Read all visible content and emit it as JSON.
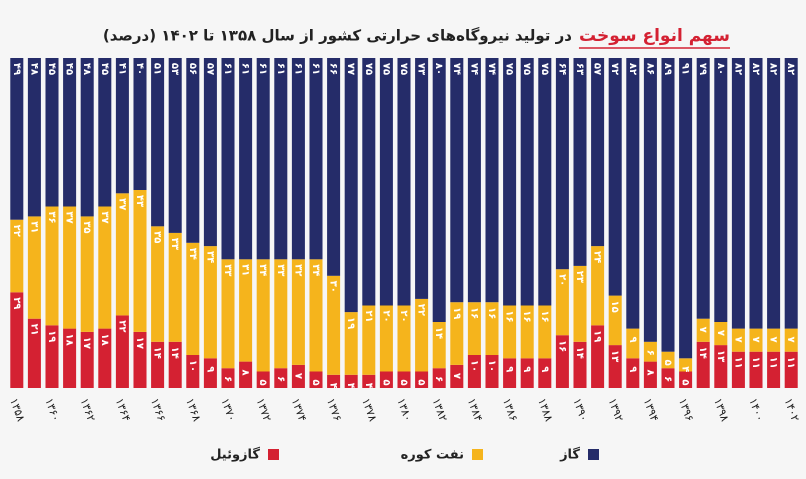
{
  "chart_data": {
    "type": "stacked_bar",
    "title_highlight": "سهم انواع سوخت",
    "title": "در تولید نیروگاه‌های حرارتی کشور از سال ۱۳۵۸ تا ۱۴۰۲ (درصد)",
    "categories": [
      "۱۳۵۸",
      null,
      "۱۳۶۰",
      null,
      "۱۳۶۲",
      null,
      "۱۳۶۴",
      null,
      "۱۳۶۶",
      null,
      "۱۳۶۸",
      null,
      "۱۳۷۰",
      null,
      "۱۳۷۲",
      null,
      "۱۳۷۴",
      null,
      "۱۳۷۶",
      null,
      "۱۳۷۸",
      null,
      "۱۳۸۰",
      null,
      "۱۳۸۲",
      null,
      "۱۳۸۴",
      null,
      "۱۳۸۶",
      null,
      "۱۳۸۸",
      null,
      "۱۳۹۰",
      null,
      "۱۳۹۲",
      null,
      "۱۳۹۴",
      null,
      "۱۳۹۶",
      null,
      "۱۳۹۸",
      null,
      "۱۴۰۰",
      null,
      "۱۴۰۲"
    ],
    "ylim": [
      0,
      100
    ],
    "series": [
      {
        "name": "گازوئیل",
        "color": "#d42132",
        "values": [
          29,
          21,
          19,
          18,
          17,
          18,
          22,
          17,
          14,
          14,
          10,
          9,
          6,
          8,
          5,
          6,
          7,
          5,
          4,
          4,
          4,
          5,
          5,
          5,
          6,
          7,
          10,
          10,
          9,
          9,
          9,
          16,
          14,
          19,
          13,
          9,
          8,
          6,
          5,
          14,
          13,
          11,
          11,
          11,
          11
        ],
        "value_labels": [
          "۲۹",
          "۲۱",
          "۱۹",
          "۱۸",
          "۱۷",
          "۱۸",
          "۲۲",
          "۱۷",
          "۱۴",
          "۱۴",
          "۱۰",
          "۹",
          "۶",
          "۸",
          "۵",
          "۶",
          "۷",
          "۵",
          "۴",
          "۴",
          "۴",
          "۵",
          "۵",
          "۵",
          "۶",
          "۷",
          "۱۰",
          "۱۰",
          "۹",
          "۹",
          "۹",
          "۱۶",
          "۱۴",
          "۱۹",
          "۱۳",
          "۹",
          "۸",
          "۶",
          "۵",
          "۱۴",
          "۱۳",
          "۱۱",
          "۱۱",
          "۱۱",
          "۱۱"
        ]
      },
      {
        "name": "نفت کوره",
        "color": "#f5b41c",
        "values": [
          22,
          31,
          36,
          37,
          35,
          37,
          37,
          43,
          35,
          33,
          34,
          34,
          33,
          31,
          34,
          33,
          32,
          34,
          30,
          19,
          21,
          20,
          20,
          22,
          14,
          19,
          16,
          16,
          16,
          16,
          16,
          20,
          23,
          24,
          15,
          9,
          6,
          5,
          4,
          7,
          7,
          7,
          7,
          7,
          7
        ],
        "value_labels": [
          "۲۲",
          "۳۱",
          "۳۶",
          "۳۷",
          "۳۵",
          "۳۷",
          "۳۷",
          "۴۳",
          "۳۵",
          "۳۳",
          "۳۴",
          "۳۴",
          "۳۳",
          "۳۱",
          "۳۴",
          "۳۳",
          "۳۲",
          "۳۴",
          "۳۰",
          "۱۹",
          "۲۱",
          "۲۰",
          "۲۰",
          "۲۲",
          "۱۴",
          "۱۹",
          "۱۶",
          "۱۶",
          "۱۶",
          "۱۶",
          "۱۶",
          "۲۰",
          "۲۳",
          "۲۴",
          "۱۵",
          "۹",
          "۶",
          "۵",
          "۴",
          "۷",
          "۷",
          "۷",
          "۷",
          "۷",
          "۷"
        ]
      },
      {
        "name": "گاز",
        "color": "#252c69",
        "values": [
          49,
          48,
          45,
          45,
          48,
          45,
          41,
          40,
          51,
          53,
          56,
          57,
          61,
          61,
          61,
          61,
          61,
          61,
          66,
          77,
          75,
          75,
          75,
          73,
          80,
          74,
          74,
          74,
          75,
          75,
          75,
          64,
          63,
          57,
          72,
          82,
          86,
          89,
          91,
          79,
          80,
          82,
          82,
          82,
          82
        ],
        "value_labels": [
          "۴۹",
          "۴۸",
          "۴۵",
          "۴۵",
          "۴۸",
          "۴۵",
          "۴۱",
          "۴۰",
          "۵۱",
          "۵۳",
          "۵۶",
          "۵۷",
          "۶۱",
          "۶۱",
          "۶۱",
          "۶۱",
          "۶۱",
          "۶۱",
          "۶۶",
          "۷۷",
          "۷۵",
          "۷۵",
          "۷۵",
          "۷۳",
          "۸۰",
          "۷۴",
          "۷۴",
          "۷۴",
          "۷۵",
          "۷۵",
          "۷۵",
          "۶۴",
          "۶۳",
          "۵۷",
          "۷۲",
          "۸۲",
          "۸۶",
          "۸۹",
          "۹۱",
          "۷۹",
          "۸۰",
          "۸۲",
          "۸۲",
          "۸۲",
          "۸۲"
        ]
      }
    ]
  }
}
